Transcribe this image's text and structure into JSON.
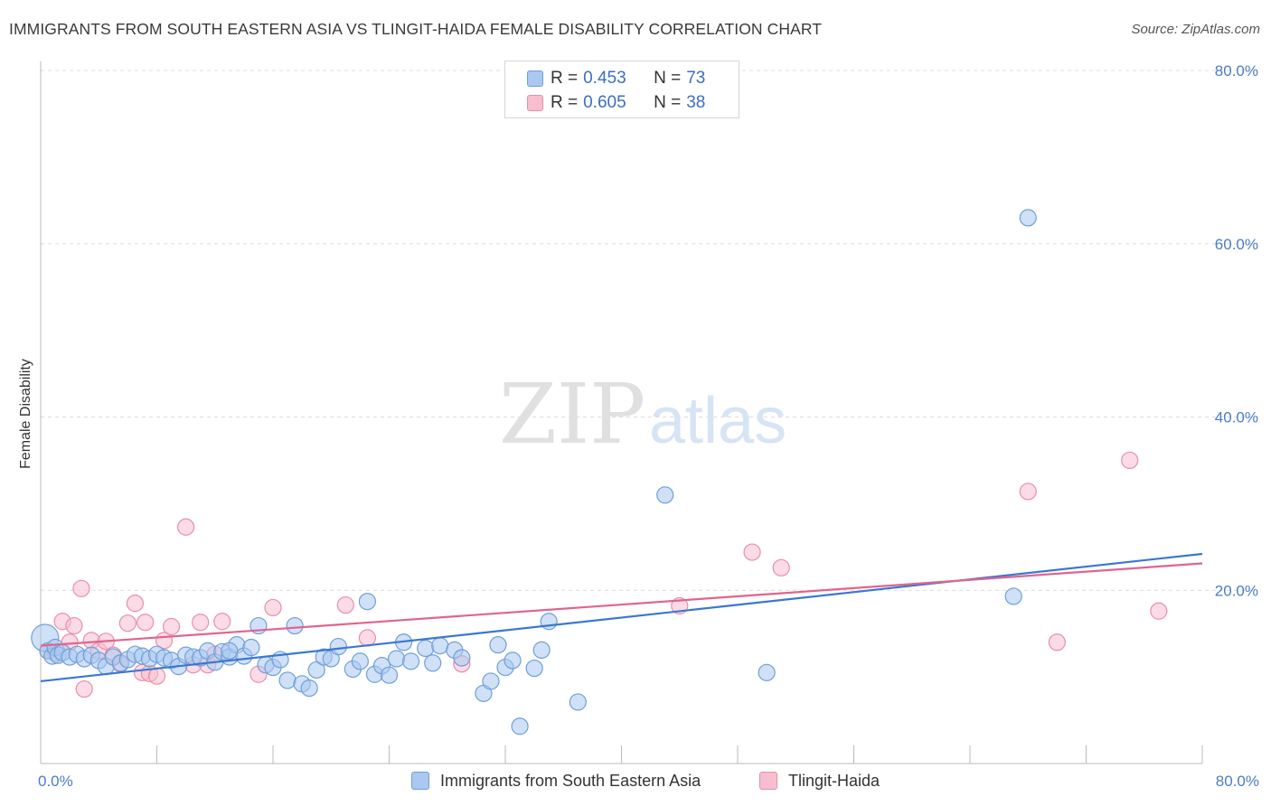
{
  "title": "IMMIGRANTS FROM SOUTH EASTERN ASIA VS TLINGIT-HAIDA FEMALE DISABILITY CORRELATION CHART",
  "source": "Source: ZipAtlas.com",
  "watermark": {
    "zip": "ZIP",
    "atlas": "atlas"
  },
  "colors": {
    "blue_fill": "#aac8f0",
    "blue_stroke": "#6f9fd8",
    "blue_line": "#3a78d0",
    "pink_fill": "#f7bed0",
    "pink_stroke": "#e88fab",
    "pink_line": "#e0648f",
    "tick_text": "#4a7cc4",
    "grid": "#dcdcdc"
  },
  "legend": {
    "rows": [
      {
        "r_label": "R = ",
        "r_value": "0.453",
        "n_label": "N = ",
        "n_value": "73"
      },
      {
        "r_label": "R = ",
        "r_value": "0.605",
        "n_label": "N = ",
        "n_value": "38"
      }
    ]
  },
  "chart_data": {
    "type": "scatter",
    "title": "IMMIGRANTS FROM SOUTH EASTERN ASIA VS TLINGIT-HAIDA FEMALE DISABILITY CORRELATION CHART",
    "xlabel": "",
    "ylabel": "Female Disability",
    "xlim": [
      0,
      80
    ],
    "ylim": [
      0,
      80
    ],
    "x_tick_labels": [
      "0.0%",
      "80.0%"
    ],
    "y_ticks": [
      20,
      40,
      60,
      80
    ],
    "y_tick_labels": [
      "20.0%",
      "40.0%",
      "60.0%",
      "80.0%"
    ],
    "grid": true,
    "legend_position": "top-center",
    "series": [
      {
        "name": "Immigrants from South Eastern Asia",
        "color": "blue",
        "trend": {
          "x": [
            0,
            80
          ],
          "y": [
            9.5,
            24.2
          ]
        },
        "points": [
          [
            0.3,
            14.5
          ],
          [
            0.5,
            13.0
          ],
          [
            0.8,
            12.4
          ],
          [
            1.0,
            13.4
          ],
          [
            1.2,
            12.5
          ],
          [
            1.5,
            12.8
          ],
          [
            2.0,
            12.3
          ],
          [
            2.5,
            12.6
          ],
          [
            3.0,
            12.1
          ],
          [
            3.5,
            12.5
          ],
          [
            4.0,
            11.9
          ],
          [
            4.5,
            11.2
          ],
          [
            5.0,
            12.3
          ],
          [
            5.5,
            11.6
          ],
          [
            6.0,
            12.0
          ],
          [
            6.5,
            12.6
          ],
          [
            7.0,
            12.4
          ],
          [
            7.5,
            12.1
          ],
          [
            8.0,
            12.6
          ],
          [
            8.5,
            12.2
          ],
          [
            9.0,
            11.9
          ],
          [
            9.5,
            11.2
          ],
          [
            10.0,
            12.5
          ],
          [
            10.5,
            12.3
          ],
          [
            11.0,
            12.2
          ],
          [
            11.5,
            13.0
          ],
          [
            12.0,
            11.7
          ],
          [
            12.5,
            12.9
          ],
          [
            13.0,
            12.3
          ],
          [
            13.5,
            13.7
          ],
          [
            14.0,
            12.4
          ],
          [
            14.5,
            13.4
          ],
          [
            15.0,
            15.9
          ],
          [
            15.5,
            11.4
          ],
          [
            16.0,
            11.1
          ],
          [
            16.5,
            12.0
          ],
          [
            17.0,
            9.6
          ],
          [
            17.5,
            15.9
          ],
          [
            18.0,
            9.2
          ],
          [
            18.5,
            8.7
          ],
          [
            19.0,
            10.8
          ],
          [
            19.5,
            12.3
          ],
          [
            20.0,
            12.1
          ],
          [
            20.5,
            13.5
          ],
          [
            21.5,
            10.9
          ],
          [
            22.0,
            11.8
          ],
          [
            22.5,
            18.7
          ],
          [
            23.0,
            10.3
          ],
          [
            23.5,
            11.3
          ],
          [
            24.0,
            10.2
          ],
          [
            24.5,
            12.1
          ],
          [
            25.0,
            14.0
          ],
          [
            25.5,
            11.8
          ],
          [
            26.5,
            13.3
          ],
          [
            27.0,
            11.6
          ],
          [
            27.5,
            13.6
          ],
          [
            28.5,
            13.1
          ],
          [
            29.0,
            12.2
          ],
          [
            30.5,
            8.1
          ],
          [
            31.0,
            9.5
          ],
          [
            31.5,
            13.7
          ],
          [
            32.0,
            11.1
          ],
          [
            32.5,
            11.9
          ],
          [
            33.0,
            4.3
          ],
          [
            34.0,
            11.0
          ],
          [
            34.5,
            13.1
          ],
          [
            35.0,
            16.4
          ],
          [
            37.0,
            7.1
          ],
          [
            43.0,
            31.0
          ],
          [
            50.0,
            10.5
          ],
          [
            67.0,
            19.3
          ],
          [
            68.0,
            63.0
          ],
          [
            13.0,
            13.0
          ]
        ]
      },
      {
        "name": "Tlingit-Haida",
        "color": "pink",
        "trend": {
          "x": [
            0,
            80
          ],
          "y": [
            13.6,
            23.1
          ]
        },
        "points": [
          [
            0.5,
            13.0
          ],
          [
            1.0,
            12.8
          ],
          [
            1.5,
            16.4
          ],
          [
            2.0,
            14.0
          ],
          [
            2.3,
            15.9
          ],
          [
            2.8,
            20.2
          ],
          [
            3.0,
            8.6
          ],
          [
            3.5,
            14.2
          ],
          [
            4.0,
            13.0
          ],
          [
            4.5,
            14.1
          ],
          [
            5.0,
            12.5
          ],
          [
            5.5,
            11.5
          ],
          [
            6.0,
            16.2
          ],
          [
            6.5,
            18.5
          ],
          [
            7.0,
            10.5
          ],
          [
            7.2,
            16.3
          ],
          [
            7.5,
            10.4
          ],
          [
            8.0,
            10.1
          ],
          [
            8.5,
            14.2
          ],
          [
            9.0,
            15.8
          ],
          [
            10.0,
            27.3
          ],
          [
            10.5,
            11.4
          ],
          [
            11.0,
            16.3
          ],
          [
            11.5,
            11.4
          ],
          [
            12.0,
            12.6
          ],
          [
            12.5,
            16.4
          ],
          [
            15.0,
            10.3
          ],
          [
            16.0,
            18.0
          ],
          [
            21.0,
            18.3
          ],
          [
            22.5,
            14.5
          ],
          [
            29.0,
            11.5
          ],
          [
            44.0,
            18.2
          ],
          [
            49.0,
            24.4
          ],
          [
            51.0,
            22.6
          ],
          [
            68.0,
            31.4
          ],
          [
            70.0,
            14.0
          ],
          [
            75.0,
            35.0
          ],
          [
            77.0,
            17.6
          ]
        ]
      }
    ]
  }
}
